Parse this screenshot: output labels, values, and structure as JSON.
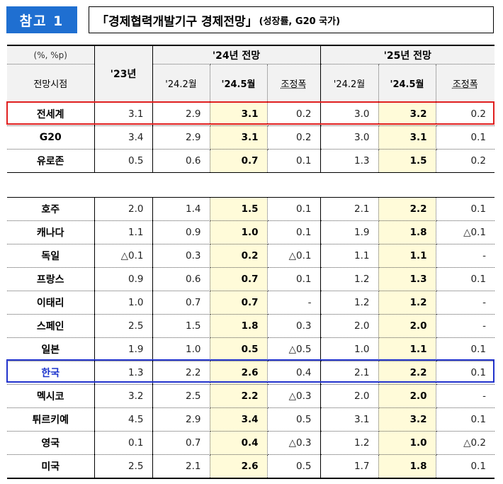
{
  "badge": "참고 1",
  "title": {
    "main": "「경제협력개발기구 경제전망」",
    "sub": "(성장률, G20 국가)"
  },
  "header": {
    "unit": "(%, %p)",
    "viewpoint": "전망시점",
    "y23": "'23년",
    "group24": "'24년 전망",
    "group25": "'25년 전망",
    "sub": [
      "'24.2월",
      "'24.5월",
      "조정폭",
      "'24.2월",
      "'24.5월",
      "조정폭"
    ]
  },
  "rows": [
    {
      "name": "전세계",
      "y23": "3.1",
      "v": [
        "2.9",
        "3.1",
        "0.2",
        "3.0",
        "3.2",
        "0.2"
      ]
    },
    {
      "name": "G20",
      "y23": "3.4",
      "v": [
        "2.9",
        "3.1",
        "0.2",
        "3.0",
        "3.1",
        "0.1"
      ]
    },
    {
      "name": "유로존",
      "y23": "0.5",
      "v": [
        "0.6",
        "0.7",
        "0.1",
        "1.3",
        "1.5",
        "0.2"
      ]
    },
    {
      "name": "호주",
      "y23": "2.0",
      "v": [
        "1.4",
        "1.5",
        "0.1",
        "2.1",
        "2.2",
        "0.1"
      ]
    },
    {
      "name": "캐나다",
      "y23": "1.1",
      "v": [
        "0.9",
        "1.0",
        "0.1",
        "1.9",
        "1.8",
        "△0.1"
      ]
    },
    {
      "name": "독일",
      "y23": "△0.1",
      "v": [
        "0.3",
        "0.2",
        "△0.1",
        "1.1",
        "1.1",
        "-"
      ]
    },
    {
      "name": "프랑스",
      "y23": "0.9",
      "v": [
        "0.6",
        "0.7",
        "0.1",
        "1.2",
        "1.3",
        "0.1"
      ]
    },
    {
      "name": "이태리",
      "y23": "1.0",
      "v": [
        "0.7",
        "0.7",
        "-",
        "1.2",
        "1.2",
        "-"
      ]
    },
    {
      "name": "스페인",
      "y23": "2.5",
      "v": [
        "1.5",
        "1.8",
        "0.3",
        "2.0",
        "2.0",
        "-"
      ]
    },
    {
      "name": "일본",
      "y23": "1.9",
      "v": [
        "1.0",
        "0.5",
        "△0.5",
        "1.0",
        "1.1",
        "0.1"
      ]
    },
    {
      "name": "한국",
      "y23": "1.3",
      "v": [
        "2.2",
        "2.6",
        "0.4",
        "2.1",
        "2.2",
        "0.1"
      ]
    },
    {
      "name": "멕시코",
      "y23": "3.2",
      "v": [
        "2.5",
        "2.2",
        "△0.3",
        "2.0",
        "2.0",
        "-"
      ]
    },
    {
      "name": "튀르키예",
      "y23": "4.5",
      "v": [
        "2.9",
        "3.4",
        "0.5",
        "3.1",
        "3.2",
        "0.1"
      ]
    },
    {
      "name": "영국",
      "y23": "0.1",
      "v": [
        "0.7",
        "0.4",
        "△0.3",
        "1.2",
        "1.0",
        "△0.2"
      ]
    },
    {
      "name": "미국",
      "y23": "2.5",
      "v": [
        "2.1",
        "2.6",
        "0.5",
        "1.7",
        "1.8",
        "0.1"
      ]
    }
  ],
  "colors": {
    "badge": "#1f6fd1",
    "highlight": "#fffbd9",
    "world_outline": "#e02020",
    "korea_outline": "#2233cc"
  }
}
